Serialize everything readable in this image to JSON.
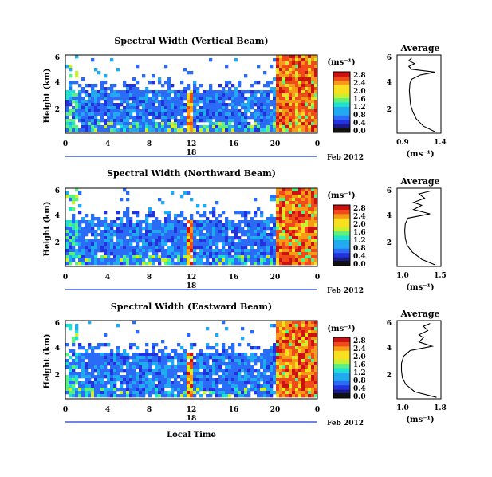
{
  "figure": {
    "x_axis_title": "Local Time",
    "date_label": "Feb 2012",
    "day_label": "18",
    "colorbar_unit": "(ms⁻¹)",
    "profile_unit": "(ms⁻¹)",
    "profile_title": "Average",
    "colormap": [
      "#1a1a8c",
      "#2233dd",
      "#2a6cf5",
      "#22aaf0",
      "#20e0d0",
      "#5cf080",
      "#c8f030",
      "#f8e020",
      "#f89a18",
      "#f04a1a",
      "#cc1111"
    ]
  },
  "chart_data": [
    {
      "type": "heatmap",
      "title": "Spectral Width (Vertical Beam)",
      "ylabel": "Height (km)",
      "x_ticks": [
        "0",
        "4",
        "8",
        "12",
        "16",
        "20",
        "0"
      ],
      "y_ticks": [
        "6",
        "4",
        "2"
      ],
      "xlim": [
        0,
        24
      ],
      "ylim": [
        0.5,
        6
      ],
      "colorbar_ticks": [
        "0.0",
        "0.4",
        "0.8",
        "1.2",
        "1.6",
        "2.0",
        "2.4",
        "2.8"
      ],
      "profile": {
        "type": "line",
        "x_ticks": [
          "0.9",
          "1.4"
        ],
        "y_ticks": [
          "6",
          "4",
          "2"
        ],
        "xlim": [
          0.75,
          1.5
        ],
        "ylim": [
          0.5,
          6
        ],
        "height": [
          0.6,
          1.0,
          1.5,
          2.0,
          2.5,
          3.0,
          3.5,
          4.0,
          4.3,
          4.6,
          4.8,
          5.0,
          5.2,
          5.4,
          5.6,
          5.8
        ],
        "value": [
          1.4,
          1.2,
          1.08,
          1.02,
          0.98,
          0.97,
          0.96,
          0.97,
          1.0,
          1.15,
          1.4,
          1.0,
          0.95,
          1.05,
          0.95,
          1.0
        ]
      }
    },
    {
      "type": "heatmap",
      "title": "Spectral Width (Northward Beam)",
      "ylabel": "Height (km)",
      "x_ticks": [
        "0",
        "4",
        "8",
        "12",
        "16",
        "20",
        "0"
      ],
      "y_ticks": [
        "6",
        "4",
        "2"
      ],
      "xlim": [
        0,
        24
      ],
      "ylim": [
        0.5,
        6
      ],
      "colorbar_ticks": [
        "0.0",
        "0.4",
        "0.8",
        "1.2",
        "1.6",
        "2.0",
        "2.4",
        "2.8"
      ],
      "profile": {
        "type": "line",
        "x_ticks": [
          "1.0",
          "1.5"
        ],
        "y_ticks": [
          "6",
          "4",
          "2"
        ],
        "xlim": [
          0.8,
          1.6
        ],
        "ylim": [
          0.5,
          6
        ],
        "height": [
          0.6,
          1.0,
          1.5,
          2.0,
          2.5,
          3.0,
          3.5,
          3.9,
          4.2,
          4.5,
          4.8,
          5.0,
          5.3,
          5.6,
          5.8
        ],
        "value": [
          1.5,
          1.25,
          1.08,
          0.98,
          0.95,
          0.94,
          0.95,
          1.0,
          1.4,
          1.1,
          1.25,
          1.1,
          1.3,
          1.2,
          1.4
        ]
      }
    },
    {
      "type": "heatmap",
      "title": "Spectral Width (Eastward Beam)",
      "ylabel": "Height (km)",
      "x_ticks": [
        "0",
        "4",
        "8",
        "12",
        "16",
        "20",
        "0"
      ],
      "y_ticks": [
        "6",
        "4",
        "2"
      ],
      "xlim": [
        0,
        24
      ],
      "ylim": [
        0.5,
        6
      ],
      "colorbar_ticks": [
        "0.0",
        "0.4",
        "0.8",
        "1.2",
        "1.6",
        "2.0",
        "2.4",
        "2.8"
      ],
      "profile": {
        "type": "line",
        "x_ticks": [
          "1.0",
          "1.8"
        ],
        "y_ticks": [
          "6",
          "4",
          "2"
        ],
        "xlim": [
          0.9,
          1.9
        ],
        "ylim": [
          0.5,
          6
        ],
        "height": [
          0.6,
          1.0,
          1.5,
          2.0,
          2.5,
          3.0,
          3.5,
          3.9,
          4.2,
          4.5,
          4.8,
          5.0,
          5.3,
          5.6,
          5.8
        ],
        "value": [
          1.8,
          1.3,
          1.1,
          1.02,
          1.0,
          1.0,
          1.05,
          1.2,
          1.7,
          1.4,
          1.5,
          1.4,
          1.6,
          1.5,
          1.65
        ]
      }
    }
  ]
}
